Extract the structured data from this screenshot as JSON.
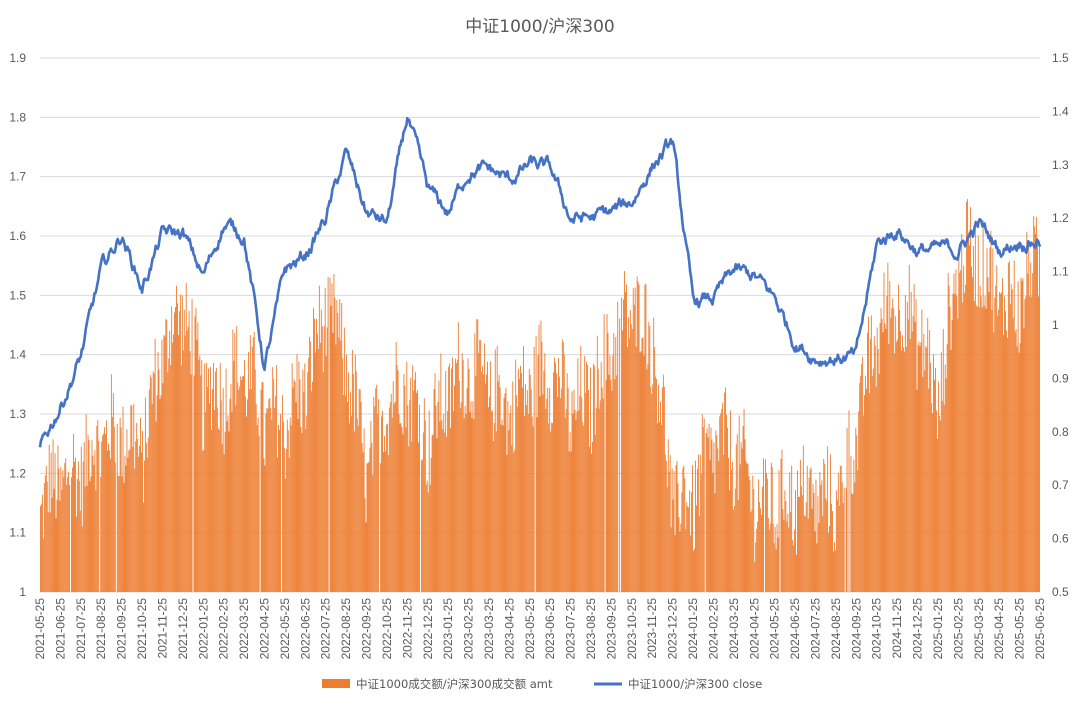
{
  "chart_data": {
    "type": "bar+line",
    "title": "中证1000/沪深300",
    "x_axis": {
      "tick_labels": [
        "2021-05-25",
        "2021-06-25",
        "2021-07-25",
        "2021-08-25",
        "2021-09-25",
        "2021-10-25",
        "2021-11-25",
        "2021-12-25",
        "2022-01-25",
        "2022-02-25",
        "2022-03-25",
        "2022-04-25",
        "2022-05-25",
        "2022-06-25",
        "2022-07-25",
        "2022-08-25",
        "2022-09-25",
        "2022-10-25",
        "2022-11-25",
        "2022-12-25",
        "2023-01-25",
        "2023-02-25",
        "2023-03-25",
        "2023-04-25",
        "2023-05-25",
        "2023-06-25",
        "2023-07-25",
        "2023-08-25",
        "2023-09-25",
        "2023-10-25",
        "2023-11-25",
        "2023-12-25",
        "2024-01-25",
        "2024-02-25",
        "2024-03-25",
        "2024-04-25",
        "2024-05-25",
        "2024-06-25",
        "2024-07-25",
        "2024-08-25",
        "2024-09-25",
        "2024-10-25",
        "2024-11-25",
        "2024-12-25",
        "2025-01-25",
        "2025-02-25",
        "2025-03-25",
        "2025-04-25",
        "2025-05-25",
        "2025-06-25"
      ],
      "label_rotation": "vertical"
    },
    "y_axis_left": {
      "min": 1,
      "max": 1.9,
      "step": 0.1,
      "tick_labels": [
        "1",
        "1.1",
        "1.2",
        "1.3",
        "1.4",
        "1.5",
        "1.6",
        "1.7",
        "1.8",
        "1.9"
      ]
    },
    "y_axis_right": {
      "min": 0.5,
      "max": 1.5,
      "step": 0.1,
      "tick_labels": [
        "0.5",
        "0.6",
        "0.7",
        "0.8",
        "0.9",
        "1",
        "1.1",
        "1.2",
        "1.3",
        "1.4",
        "1.5"
      ]
    },
    "grid": "horizontal",
    "legend_position": "bottom",
    "series": [
      {
        "name": "中证1000成交额/沪深300成交额 amt",
        "type": "bar",
        "axis": "left",
        "color": "#ED7D31",
        "monthly_approx_values": [
          1.15,
          1.19,
          1.21,
          1.26,
          1.27,
          1.24,
          1.41,
          1.48,
          1.33,
          1.34,
          1.38,
          1.29,
          1.29,
          1.35,
          1.48,
          1.39,
          1.2,
          1.33,
          1.35,
          1.26,
          1.34,
          1.38,
          1.34,
          1.31,
          1.35,
          1.38,
          1.3,
          1.33,
          1.42,
          1.48,
          1.43,
          1.15,
          1.16,
          1.25,
          1.24,
          1.16,
          1.15,
          1.16,
          1.16,
          1.15,
          1.27,
          1.44,
          1.49,
          1.44,
          1.32,
          1.56,
          1.57,
          1.49,
          1.49,
          1.58
        ]
      },
      {
        "name": "中证1000/沪深300 close",
        "type": "line",
        "axis": "right",
        "color": "#4472C4",
        "monthly_approx_values": [
          0.77,
          0.85,
          0.94,
          1.1,
          1.17,
          1.07,
          1.17,
          1.17,
          1.09,
          1.19,
          1.17,
          0.92,
          1.1,
          1.13,
          1.2,
          1.32,
          1.21,
          1.19,
          1.39,
          1.25,
          1.21,
          1.29,
          1.29,
          1.27,
          1.3,
          1.29,
          1.2,
          1.2,
          1.21,
          1.23,
          1.3,
          1.34,
          1.04,
          1.05,
          1.1,
          1.09,
          1.05,
          0.97,
          0.94,
          0.94,
          0.94,
          1.15,
          1.18,
          1.14,
          1.14,
          1.14,
          1.19,
          1.14,
          1.16,
          1.16
        ],
        "end_value": 1.16
      }
    ]
  }
}
